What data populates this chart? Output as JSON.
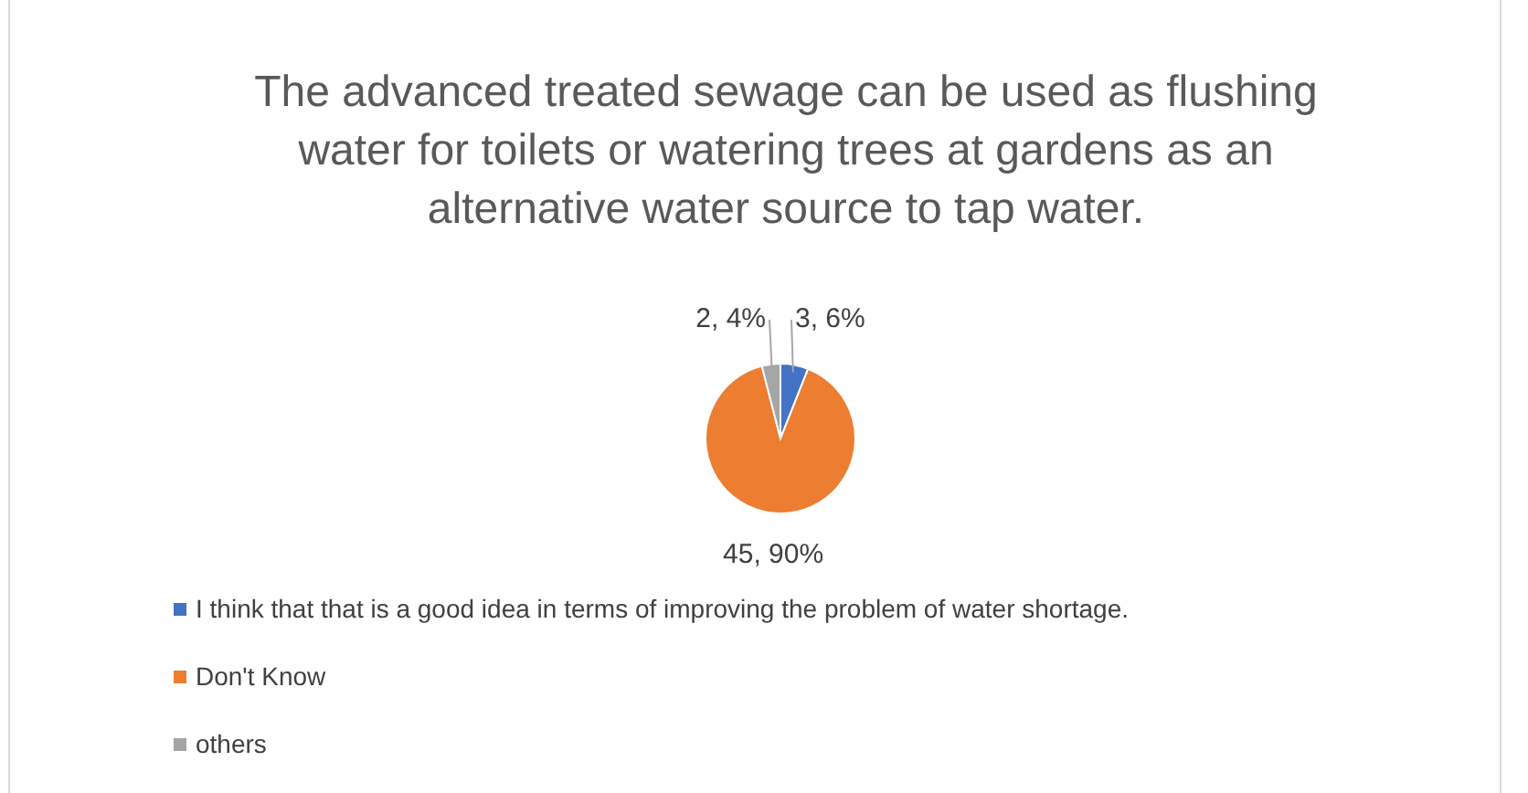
{
  "chart_data": {
    "type": "pie",
    "title": "The advanced treated sewage can be used as flushing water for toilets or watering trees at gardens as an alternative water source to tap water.",
    "categories": [
      "I think that that is a good idea in terms of improving the problem of water shortage.",
      "Don't Know",
      "others"
    ],
    "values": [
      3,
      45,
      2
    ],
    "colors": [
      "#4472c4",
      "#ed7d31",
      "#a5a5a5"
    ],
    "value_labels": [
      "3, 6%",
      "45, 90%",
      "2, 4%"
    ],
    "legend": "bottom"
  }
}
